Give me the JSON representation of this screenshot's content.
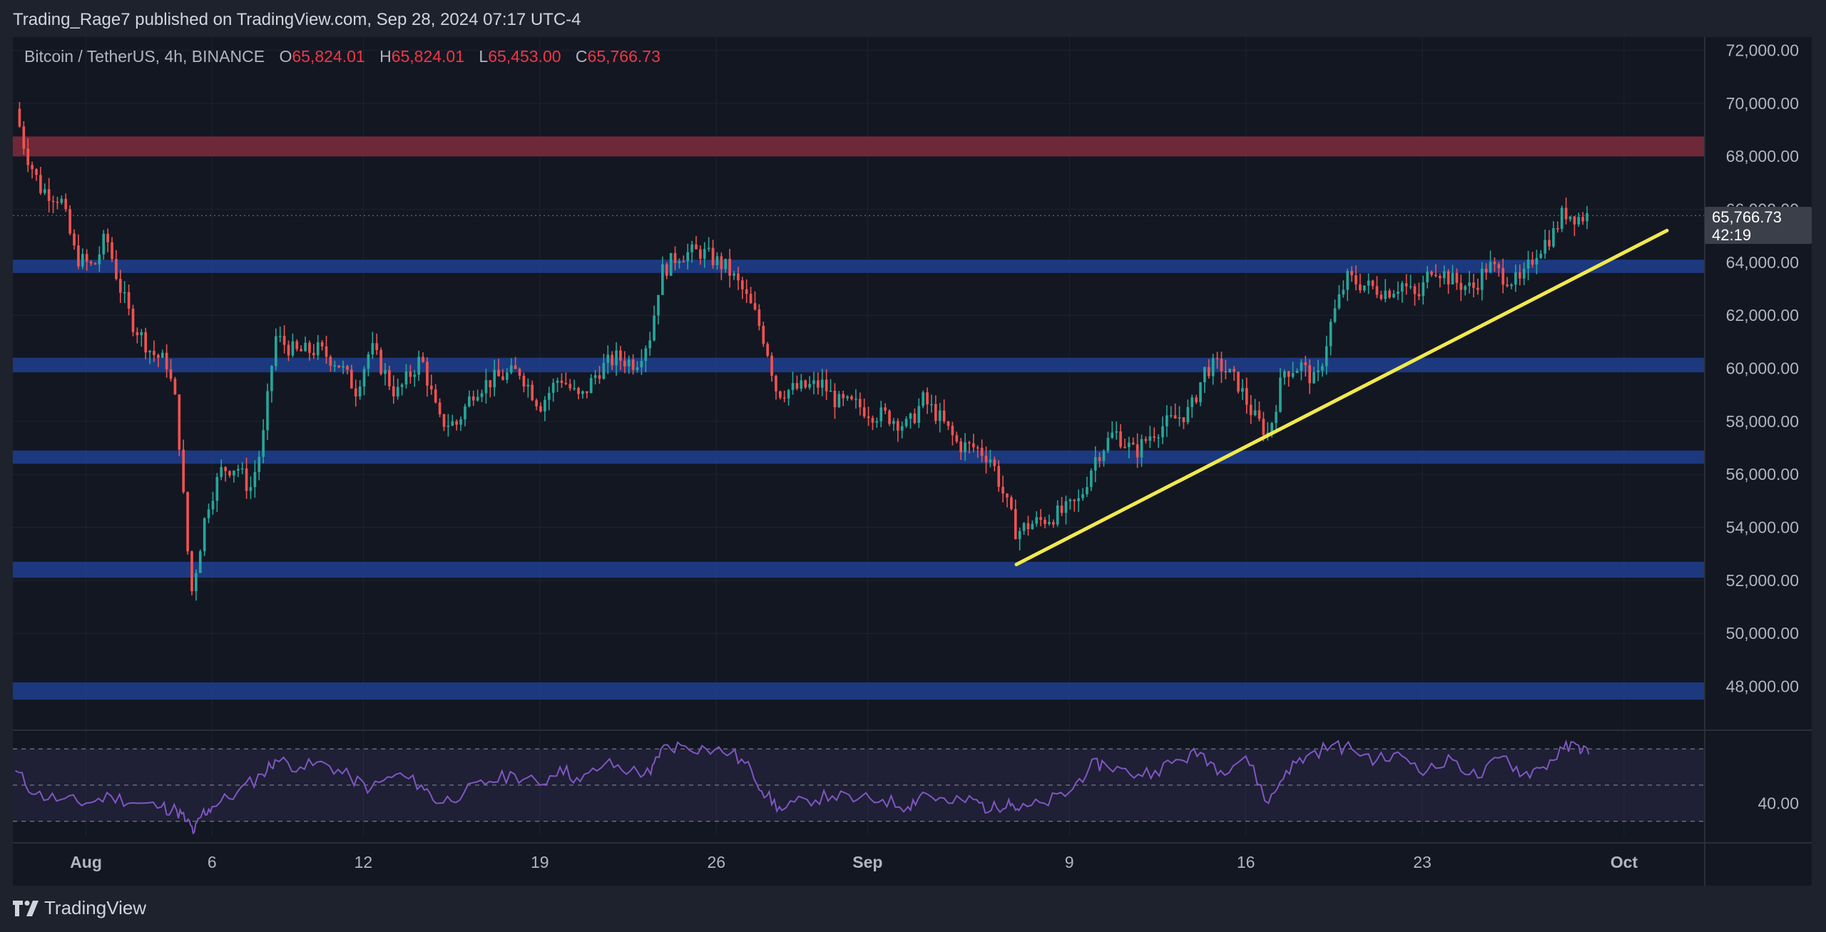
{
  "header": {
    "published_by": "Trading_Rage7 published on TradingView.com, Sep 28, 2024 07:17 UTC-4"
  },
  "legend": {
    "symbol": "Bitcoin / TetherUS, 4h, BINANCE",
    "open_label": "O",
    "open": "65,824.01",
    "high_label": "H",
    "high": "65,824.01",
    "low_label": "L",
    "low": "65,453.00",
    "close_label": "C",
    "close": "65,766.73"
  },
  "price_tag": {
    "price": "65,766.73",
    "countdown": "42:19"
  },
  "brand": {
    "name": "TradingView"
  },
  "colors": {
    "background": "#131722",
    "up": "#26a69a",
    "down": "#ef5350",
    "support_zone": "#1f3f8f",
    "resistance_zone": "#7a2a3a",
    "trendline": "#f2e94e",
    "rsi": "#7e57c2"
  },
  "chart_data": [
    {
      "type": "candlestick",
      "symbol": "Bitcoin / TetherUS",
      "interval": "4h",
      "exchange": "BINANCE",
      "y_ticks": [
        "72,000.00",
        "70,000.00",
        "68,000.00",
        "66,000.00",
        "64,000.00",
        "62,000.00",
        "60,000.00",
        "58,000.00",
        "56,000.00",
        "54,000.00",
        "52,000.00",
        "50,000.00",
        "48,000.00"
      ],
      "ylim": [
        46400,
        72500
      ],
      "x_ticks": [
        {
          "label": "Aug",
          "day": 0
        },
        {
          "label": "6",
          "day": 5
        },
        {
          "label": "12",
          "day": 11
        },
        {
          "label": "19",
          "day": 18
        },
        {
          "label": "26",
          "day": 25
        },
        {
          "label": "Sep",
          "day": 31
        },
        {
          "label": "9",
          "day": 39
        },
        {
          "label": "16",
          "day": 46
        },
        {
          "label": "23",
          "day": 53
        },
        {
          "label": "Oct",
          "day": 61
        }
      ],
      "xlim_days": [
        -2.9,
        64.2
      ],
      "close_path": [
        [
          -2.8,
          69800
        ],
        [
          -2.4,
          68200
        ],
        [
          -1.8,
          66800
        ],
        [
          -1.0,
          66400
        ],
        [
          -0.4,
          64200
        ],
        [
          0.3,
          63800
        ],
        [
          0.8,
          65000
        ],
        [
          1.3,
          63200
        ],
        [
          1.8,
          61800
        ],
        [
          2.6,
          60600
        ],
        [
          3.2,
          60200
        ],
        [
          3.6,
          58500
        ],
        [
          4.0,
          53400
        ],
        [
          4.2,
          51600
        ],
        [
          4.45,
          52900
        ],
        [
          4.8,
          54800
        ],
        [
          5.4,
          56200
        ],
        [
          6.0,
          56300
        ],
        [
          6.5,
          55400
        ],
        [
          7.0,
          57200
        ],
        [
          7.5,
          61200
        ],
        [
          8.3,
          60600
        ],
        [
          9.2,
          60700
        ],
        [
          10.0,
          60200
        ],
        [
          10.7,
          59200
        ],
        [
          11.3,
          60800
        ],
        [
          12.3,
          59000
        ],
        [
          13.3,
          60400
        ],
        [
          14.0,
          58000
        ],
        [
          14.7,
          57900
        ],
        [
          15.4,
          59200
        ],
        [
          16.2,
          59600
        ],
        [
          17.2,
          59900
        ],
        [
          18.0,
          58600
        ],
        [
          18.8,
          59700
        ],
        [
          19.6,
          58800
        ],
        [
          20.3,
          59900
        ],
        [
          21.0,
          60400
        ],
        [
          21.8,
          60200
        ],
        [
          22.4,
          61300
        ],
        [
          22.8,
          63600
        ],
        [
          23.5,
          64300
        ],
        [
          24.4,
          64400
        ],
        [
          25.4,
          63800
        ],
        [
          26.0,
          63000
        ],
        [
          26.6,
          61900
        ],
        [
          27.0,
          60800
        ],
        [
          27.4,
          59100
        ],
        [
          28.0,
          59200
        ],
        [
          28.6,
          59300
        ],
        [
          29.2,
          59400
        ],
        [
          29.8,
          58700
        ],
        [
          30.6,
          58600
        ],
        [
          31.2,
          58300
        ],
        [
          31.8,
          58200
        ],
        [
          32.6,
          57800
        ],
        [
          33.2,
          58800
        ],
        [
          33.8,
          58200
        ],
        [
          34.6,
          57100
        ],
        [
          35.3,
          57000
        ],
        [
          35.9,
          56600
        ],
        [
          36.4,
          55200
        ],
        [
          36.9,
          53800
        ],
        [
          37.4,
          54100
        ],
        [
          38.0,
          54300
        ],
        [
          38.8,
          54600
        ],
        [
          39.4,
          55000
        ],
        [
          40.0,
          56600
        ],
        [
          40.8,
          57600
        ],
        [
          41.6,
          56800
        ],
        [
          42.3,
          57600
        ],
        [
          43.0,
          58000
        ],
        [
          43.8,
          58400
        ],
        [
          44.4,
          60000
        ],
        [
          45.0,
          60100
        ],
        [
          45.7,
          59400
        ],
        [
          46.3,
          58200
        ],
        [
          46.9,
          57500
        ],
        [
          47.5,
          59900
        ],
        [
          48.2,
          60100
        ],
        [
          48.8,
          59400
        ],
        [
          49.4,
          61800
        ],
        [
          50.0,
          63400
        ],
        [
          50.8,
          63100
        ],
        [
          51.6,
          62900
        ],
        [
          52.2,
          63200
        ],
        [
          52.8,
          62600
        ],
        [
          53.4,
          63900
        ],
        [
          54.2,
          63300
        ],
        [
          55.0,
          63000
        ],
        [
          55.6,
          63900
        ],
        [
          56.2,
          63500
        ],
        [
          56.9,
          63200
        ],
        [
          57.5,
          64400
        ],
        [
          58.2,
          65100
        ],
        [
          58.6,
          65900
        ],
        [
          59.2,
          65700
        ],
        [
          59.6,
          65767
        ]
      ],
      "zones": [
        {
          "kind": "resistance",
          "from": 68000,
          "to": 68750
        },
        {
          "kind": "support",
          "from": 63600,
          "to": 64100
        },
        {
          "kind": "support",
          "from": 59850,
          "to": 60400
        },
        {
          "kind": "support",
          "from": 56400,
          "to": 56900
        },
        {
          "kind": "support",
          "from": 52100,
          "to": 52700
        },
        {
          "kind": "support",
          "from": 47500,
          "to": 48150
        }
      ],
      "trendline": {
        "x1": 36.9,
        "y1": 52600,
        "x2": 62.7,
        "y2": 65200
      },
      "last_price": 65766.73
    },
    {
      "type": "line",
      "name": "RSI",
      "y_ticks": [
        "40.00"
      ],
      "ylim": [
        22,
        78
      ],
      "levels": [
        70,
        50,
        30
      ],
      "x_days": [
        -2.8,
        -2.0,
        -1.0,
        0.0,
        1.0,
        2.0,
        3.0,
        3.6,
        4.0,
        4.3,
        4.6,
        5.0,
        6.0,
        7.0,
        7.5,
        8.5,
        9.5,
        10.5,
        11.3,
        12.3,
        13.3,
        14.0,
        15.0,
        16.0,
        17.0,
        18.0,
        18.8,
        19.6,
        20.6,
        21.6,
        22.4,
        22.8,
        23.6,
        24.6,
        25.6,
        26.4,
        27.0,
        27.6,
        28.6,
        29.6,
        30.6,
        31.6,
        32.6,
        33.2,
        34.2,
        35.2,
        35.9,
        36.6,
        37.0,
        38.0,
        39.0,
        39.8,
        40.4,
        41.4,
        42.4,
        43.4,
        44.2,
        45.0,
        46.0,
        46.9,
        47.6,
        48.4,
        49.4,
        50.2,
        51.2,
        52.2,
        53.2,
        54.2,
        55.2,
        56.2,
        57.0,
        57.8,
        58.6,
        59.2,
        59.6
      ],
      "values": [
        58,
        45,
        42,
        40,
        44,
        40,
        38,
        36,
        30,
        24,
        34,
        38,
        46,
        56,
        64,
        60,
        62,
        54,
        48,
        56,
        50,
        40,
        46,
        52,
        56,
        50,
        60,
        52,
        62,
        58,
        56,
        70,
        72,
        70,
        68,
        58,
        44,
        36,
        42,
        44,
        42,
        42,
        38,
        46,
        40,
        42,
        36,
        42,
        36,
        40,
        46,
        60,
        62,
        56,
        58,
        64,
        68,
        58,
        66,
        40,
        58,
        66,
        72,
        70,
        64,
        66,
        58,
        64,
        54,
        66,
        56,
        60,
        70,
        72,
        67
      ]
    }
  ]
}
